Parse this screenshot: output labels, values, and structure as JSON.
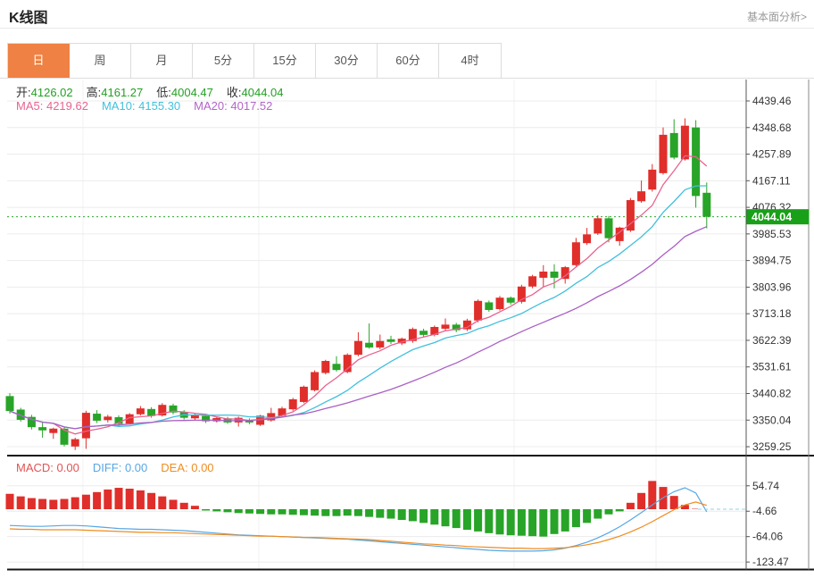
{
  "header": {
    "title": "K线图",
    "link": "基本面分析>"
  },
  "tabs": {
    "items": [
      {
        "label": "日",
        "selected": true
      },
      {
        "label": "周",
        "selected": false
      },
      {
        "label": "月",
        "selected": false
      },
      {
        "label": "5分",
        "selected": false
      },
      {
        "label": "15分",
        "selected": false
      },
      {
        "label": "30分",
        "selected": false
      },
      {
        "label": "60分",
        "selected": false
      },
      {
        "label": "4时",
        "selected": false
      }
    ]
  },
  "ohlc": {
    "pairs": [
      {
        "label": "开:",
        "value": "4126.02"
      },
      {
        "label": "高:",
        "value": "4161.27"
      },
      {
        "label": "低:",
        "value": "4004.47"
      },
      {
        "label": "收:",
        "value": "4044.04"
      }
    ],
    "value_color": "#21a121"
  },
  "ma_summary": [
    {
      "label": "MA5:",
      "value": "4219.62",
      "color": "#e8638f"
    },
    {
      "label": "MA10:",
      "value": "4155.30",
      "color": "#41c0dd"
    },
    {
      "label": "MA20:",
      "value": "4017.52",
      "color": "#b264c8"
    }
  ],
  "macd_summary": [
    {
      "label": "MACD:",
      "value": "0.00",
      "color": "#e05454"
    },
    {
      "label": "DIFF:",
      "value": "0.00",
      "color": "#57a7e3"
    },
    {
      "label": "DEA:",
      "value": "0.00",
      "color": "#f08c1f"
    }
  ],
  "current_price": "4044.04",
  "colors": {
    "up": "#e02e2a",
    "down": "#28a428",
    "ma5": "#e8638f",
    "ma10": "#41c0dd",
    "ma20": "#aa5fc4",
    "diff": "#57a7e3",
    "dea": "#f08c1f",
    "price_line": "#2ca52c",
    "badge_bg": "#18a018",
    "grid": "#ececec",
    "vgrid": "#f0f0f0",
    "axis": "#555",
    "tick_text": "#333",
    "separator": "#141414",
    "macd_zero_dash": "#8fd3e8",
    "tab_accent": "#ee8143"
  },
  "chart_data": {
    "type": "candlestick+macd",
    "main": {
      "y_ticks": [
        4439.46,
        4348.68,
        4257.89,
        4167.11,
        4076.32,
        3985.53,
        3894.75,
        3803.96,
        3713.18,
        3622.39,
        3531.61,
        3440.82,
        3350.04,
        3259.25
      ],
      "current_price": 4044.04,
      "overlays": [
        "MA5",
        "MA10",
        "MA20"
      ],
      "candles_ohlc": [
        [
          3432,
          3442,
          3372,
          3381
        ],
        [
          3386,
          3392,
          3345,
          3351
        ],
        [
          3361,
          3368,
          3318,
          3326
        ],
        [
          3326,
          3345,
          3290,
          3315
        ],
        [
          3306,
          3324,
          3286,
          3321
        ],
        [
          3321,
          3326,
          3260,
          3266
        ],
        [
          3260,
          3290,
          3248,
          3285
        ],
        [
          3288,
          3382,
          3252,
          3375
        ],
        [
          3372,
          3384,
          3340,
          3348
        ],
        [
          3350,
          3368,
          3342,
          3362
        ],
        [
          3360,
          3366,
          3330,
          3337
        ],
        [
          3338,
          3374,
          3334,
          3370
        ],
        [
          3370,
          3398,
          3366,
          3390
        ],
        [
          3388,
          3394,
          3358,
          3364
        ],
        [
          3366,
          3408,
          3362,
          3402
        ],
        [
          3400,
          3406,
          3370,
          3376
        ],
        [
          3378,
          3384,
          3352,
          3358
        ],
        [
          3356,
          3372,
          3350,
          3367
        ],
        [
          3365,
          3370,
          3340,
          3346
        ],
        [
          3346,
          3362,
          3342,
          3357
        ],
        [
          3356,
          3361,
          3337,
          3342
        ],
        [
          3342,
          3362,
          3328,
          3358
        ],
        [
          3350,
          3356,
          3336,
          3342
        ],
        [
          3334,
          3368,
          3330,
          3365
        ],
        [
          3349,
          3392,
          3345,
          3374
        ],
        [
          3365,
          3396,
          3360,
          3390
        ],
        [
          3387,
          3426,
          3382,
          3421
        ],
        [
          3412,
          3468,
          3408,
          3464
        ],
        [
          3452,
          3520,
          3448,
          3514
        ],
        [
          3511,
          3556,
          3506,
          3552
        ],
        [
          3542,
          3568,
          3516,
          3521
        ],
        [
          3514,
          3578,
          3510,
          3573
        ],
        [
          3573,
          3650,
          3568,
          3620
        ],
        [
          3614,
          3680,
          3594,
          3598
        ],
        [
          3598,
          3642,
          3592,
          3620
        ],
        [
          3626,
          3638,
          3610,
          3617
        ],
        [
          3612,
          3632,
          3606,
          3628
        ],
        [
          3620,
          3666,
          3614,
          3661
        ],
        [
          3655,
          3662,
          3634,
          3641
        ],
        [
          3641,
          3673,
          3636,
          3668
        ],
        [
          3662,
          3697,
          3656,
          3676
        ],
        [
          3676,
          3682,
          3650,
          3657
        ],
        [
          3660,
          3696,
          3654,
          3690
        ],
        [
          3690,
          3762,
          3684,
          3757
        ],
        [
          3752,
          3758,
          3720,
          3726
        ],
        [
          3729,
          3774,
          3724,
          3768
        ],
        [
          3768,
          3772,
          3744,
          3751
        ],
        [
          3754,
          3812,
          3748,
          3806
        ],
        [
          3806,
          3846,
          3800,
          3841
        ],
        [
          3836,
          3879,
          3804,
          3857
        ],
        [
          3857,
          3882,
          3800,
          3836
        ],
        [
          3832,
          3876,
          3816,
          3872
        ],
        [
          3879,
          3972,
          3874,
          3957
        ],
        [
          3954,
          4006,
          3948,
          3984
        ],
        [
          3987,
          4049,
          3982,
          4039
        ],
        [
          4039,
          4047,
          3957,
          3971
        ],
        [
          3961,
          4010,
          3945,
          4007
        ],
        [
          3997,
          4108,
          3992,
          4101
        ],
        [
          4097,
          4168,
          4092,
          4131
        ],
        [
          4137,
          4224,
          4130,
          4205
        ],
        [
          4193,
          4349,
          4188,
          4324
        ],
        [
          4330,
          4377,
          4240,
          4246
        ],
        [
          4240,
          4380,
          4236,
          4355
        ],
        [
          4349,
          4374,
          4075,
          4115
        ],
        [
          4126.02,
          4161.27,
          4004.47,
          4044.04
        ]
      ]
    },
    "macd": {
      "y_ticks": [
        54.74,
        -4.66,
        -64.06,
        -123.47
      ],
      "histogram": [
        36,
        30,
        26,
        24,
        22,
        24,
        28,
        34,
        40,
        46,
        50,
        48,
        44,
        38,
        30,
        22,
        15,
        8,
        -3,
        -5,
        -7,
        -9,
        -10,
        -11,
        -12,
        -12,
        -13,
        -14,
        -15,
        -16,
        -16,
        -15,
        -16,
        -18,
        -20,
        -22,
        -25,
        -28,
        -32,
        -36,
        -40,
        -44,
        -48,
        -52,
        -56,
        -59,
        -61,
        -62,
        -63,
        -64,
        -58,
        -52,
        -42,
        -32,
        -22,
        -12,
        -5,
        15,
        38,
        66,
        52,
        31,
        10,
        1,
        0
      ],
      "diff": [
        -38,
        -39,
        -40,
        -40,
        -39,
        -38,
        -38,
        -39,
        -41,
        -43,
        -45,
        -46,
        -47,
        -47,
        -48,
        -49,
        -50,
        -52,
        -54,
        -56,
        -58,
        -60,
        -61,
        -62,
        -63,
        -64,
        -65,
        -66,
        -67,
        -68,
        -69,
        -70,
        -72,
        -74,
        -76,
        -78,
        -80,
        -82,
        -84,
        -86,
        -88,
        -90,
        -92,
        -94,
        -96,
        -97,
        -98,
        -98,
        -98,
        -97,
        -95,
        -91,
        -85,
        -77,
        -67,
        -55,
        -41,
        -25,
        -8,
        10,
        27,
        41,
        50,
        38,
        -6
      ],
      "dea": [
        -46,
        -47,
        -47,
        -48,
        -48,
        -48,
        -48,
        -49,
        -50,
        -51,
        -52,
        -53,
        -54,
        -54,
        -55,
        -55,
        -56,
        -57,
        -58,
        -59,
        -60,
        -61,
        -62,
        -63,
        -63,
        -64,
        -65,
        -66,
        -66,
        -67,
        -68,
        -69,
        -70,
        -71,
        -73,
        -75,
        -77,
        -79,
        -81,
        -82,
        -84,
        -85,
        -87,
        -88,
        -89,
        -90,
        -91,
        -91,
        -92,
        -92,
        -91,
        -90,
        -87,
        -83,
        -78,
        -71,
        -63,
        -53,
        -42,
        -29,
        -15,
        -1,
        10,
        17,
        9
      ]
    }
  }
}
